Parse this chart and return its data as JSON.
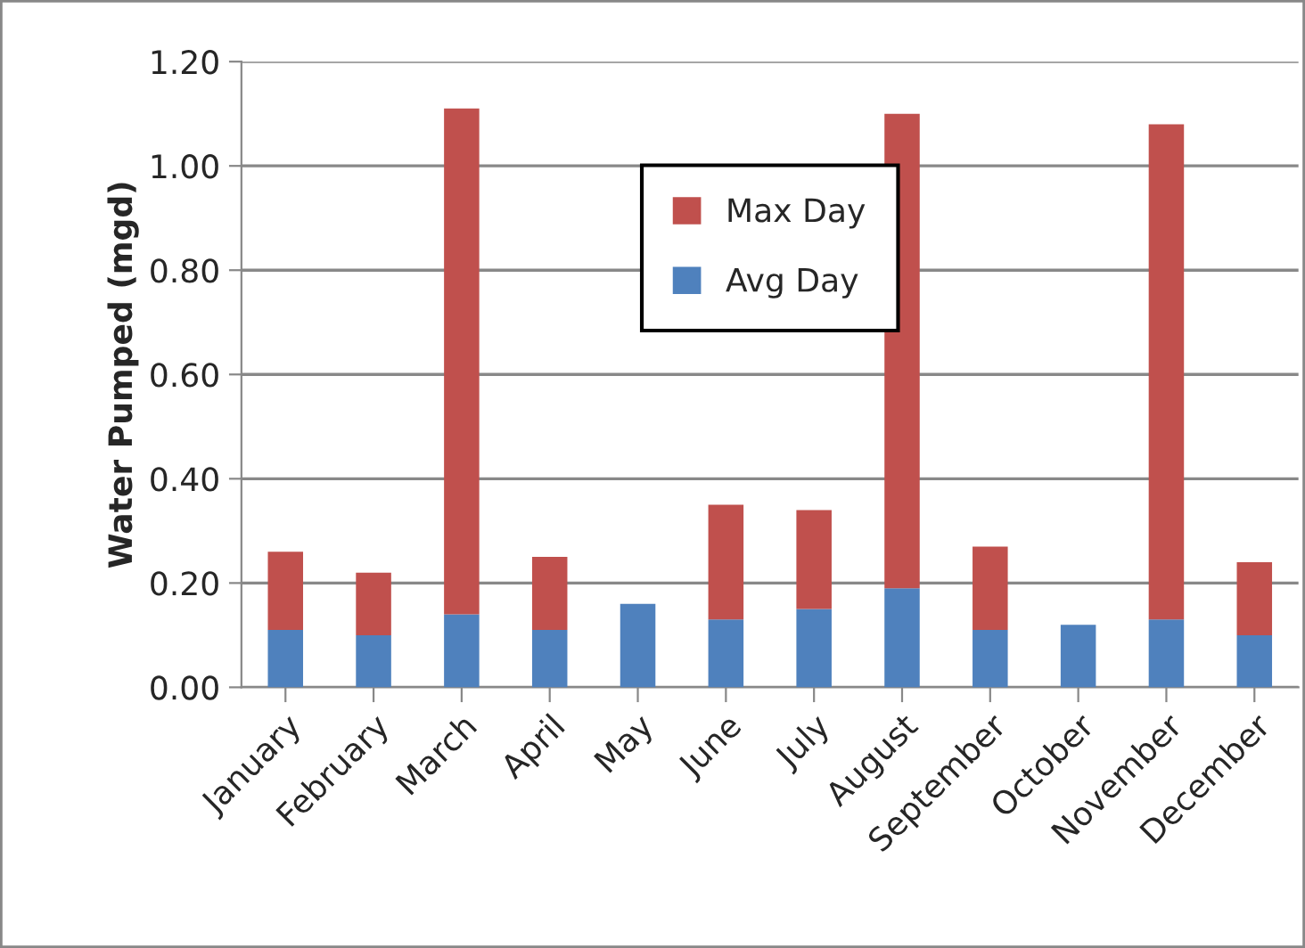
{
  "chart_data": {
    "type": "bar",
    "stacked": true,
    "ylabel": "Water Pumped (mgd)",
    "categories": [
      "January",
      "February",
      "March",
      "April",
      "May",
      "June",
      "July",
      "August",
      "September",
      "October",
      "November",
      "December"
    ],
    "series": [
      {
        "name": "Avg Day",
        "color": "#4f81bd",
        "values": [
          0.11,
          0.1,
          0.14,
          0.11,
          0.16,
          0.13,
          0.15,
          0.19,
          0.11,
          0.12,
          0.13,
          0.1
        ]
      },
      {
        "name": "Max Day",
        "color": "#c0504d",
        "values": [
          0.15,
          0.12,
          0.97,
          0.14,
          null,
          0.22,
          0.19,
          0.91,
          0.16,
          null,
          0.95,
          0.14
        ]
      }
    ],
    "ylim": [
      0,
      1.2
    ],
    "yticks": [
      {
        "value": 0,
        "label": "0.00"
      },
      {
        "value": 0.2,
        "label": "0.20"
      },
      {
        "value": 0.4,
        "label": "0.40"
      },
      {
        "value": 0.6,
        "label": "0.60"
      },
      {
        "value": 0.8,
        "label": "0.80"
      },
      {
        "value": 1.0,
        "label": "1.00"
      },
      {
        "value": 1.2,
        "label": "1.20"
      }
    ],
    "grid": "y",
    "legend": "top"
  }
}
